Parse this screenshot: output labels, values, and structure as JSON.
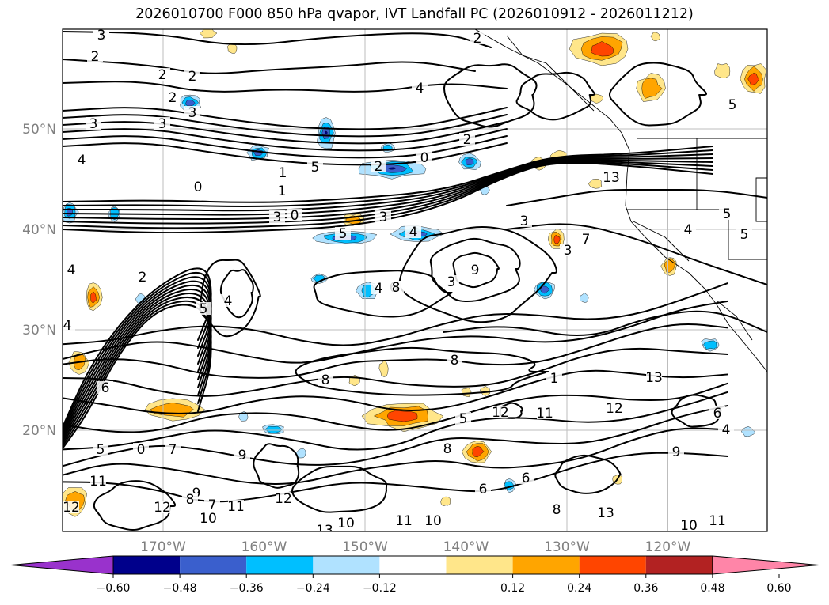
{
  "chart_data": {
    "type": "map-contour",
    "title": "2026010700 F000 850 hPa qvapor, IVT Landfall PC (2026010912 - 2026011212)",
    "lat_ticks": [
      {
        "value": 50,
        "label": "50°N"
      },
      {
        "value": 40,
        "label": "40°N"
      },
      {
        "value": 30,
        "label": "30°N"
      },
      {
        "value": 20,
        "label": "20°N"
      }
    ],
    "lon_ticks": [
      {
        "value": -170,
        "label": "170°W"
      },
      {
        "value": -160,
        "label": "160°W"
      },
      {
        "value": -150,
        "label": "150°W"
      },
      {
        "value": -140,
        "label": "140°W"
      },
      {
        "value": -130,
        "label": "130°W"
      },
      {
        "value": -120,
        "label": "120°W"
      }
    ],
    "grid": true,
    "colorbar": {
      "orientation": "horizontal",
      "extend": "both",
      "bounds": [
        -0.6,
        -0.48,
        -0.36,
        -0.24,
        -0.12,
        0.12,
        0.24,
        0.36,
        0.48,
        0.6
      ],
      "tick_labels": [
        "−0.60",
        "−0.48",
        "−0.36",
        "−0.24",
        "−0.12",
        "0.12",
        "0.24",
        "0.36",
        "0.48",
        "0.60"
      ],
      "colors": [
        "#9932cc",
        "#00008b",
        "#3a5fcd",
        "#00bfff",
        "#b0e2ff",
        "#ffffff",
        "#ffe68a",
        "#ffa500",
        "#ff4500",
        "#b22222",
        "#ff85a8"
      ]
    },
    "contour_labels": [
      "1",
      "2",
      "2",
      "2",
      "2",
      "3",
      "3",
      "3",
      "4",
      "5",
      "1",
      "0",
      "1",
      "2",
      "0",
      "3",
      "3",
      "0",
      "5",
      "4",
      "3",
      "3",
      "4",
      "5",
      "4",
      "5",
      "4",
      "4",
      "3",
      "9",
      "8",
      "8",
      "2",
      "1",
      "0",
      "7",
      "5",
      "9",
      "6",
      "9",
      "7",
      "11",
      "8",
      "12",
      "12",
      "13",
      "11",
      "10",
      "13",
      "10",
      "11",
      "12",
      "11",
      "12",
      "13",
      "9",
      "6",
      "6",
      "8",
      "10",
      "10",
      "11",
      "12",
      "13",
      "8",
      "5",
      "6",
      "4",
      "6",
      "7",
      "8",
      "5",
      "5",
      "2",
      "4",
      "2",
      "4",
      "3"
    ],
    "features": {
      "negative_blobs": 22,
      "positive_blobs": 26
    }
  }
}
